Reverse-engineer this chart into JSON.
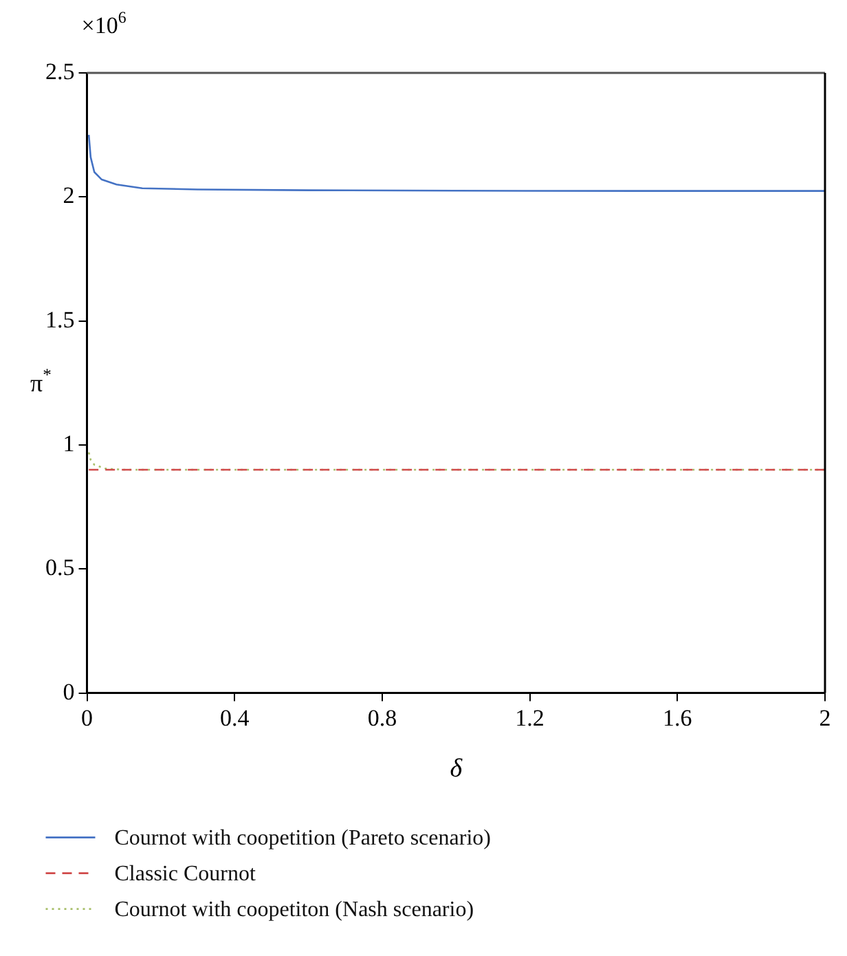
{
  "chart_data": {
    "type": "line",
    "xlabel": "δ",
    "ylabel": "π$^{*}$",
    "annotations": [
      "×10$^{6}$"
    ],
    "xlim": [
      0,
      2
    ],
    "xticks": [
      0,
      0.4,
      0.8,
      1.2,
      1.6,
      2
    ],
    "ylim": [
      0,
      2.5
    ],
    "yticks": [
      0,
      0.5,
      1,
      1.5,
      2,
      2.5
    ],
    "grid": false,
    "legend": "bottom",
    "marker": "none",
    "series": [
      {
        "name": "Cournot with coopetition (Pareto scenario)",
        "color": "#4472c4",
        "line_style": "solid",
        "x": [
          0.005,
          0.01,
          0.02,
          0.04,
          0.08,
          0.15,
          0.3,
          0.6,
          1.0,
          1.5,
          2.0
        ],
        "values": [
          2.25,
          2.16,
          2.1,
          2.07,
          2.05,
          2.035,
          2.03,
          2.027,
          2.025,
          2.024,
          2.024
        ]
      },
      {
        "name": "Classic Cournot",
        "color": "#d04a4a",
        "line_style": "dashed",
        "x": [
          0.005,
          2.0
        ],
        "values": [
          0.9,
          0.9
        ]
      },
      {
        "name": "Cournot with coopetiton (Nash scenario)",
        "color": "#a8bf6a",
        "line_style": "dotted",
        "x": [
          0.005,
          0.01,
          0.02,
          0.05,
          0.1,
          0.5,
          1.0,
          2.0
        ],
        "values": [
          0.97,
          0.94,
          0.92,
          0.905,
          0.9,
          0.9,
          0.9,
          0.9
        ]
      }
    ]
  }
}
